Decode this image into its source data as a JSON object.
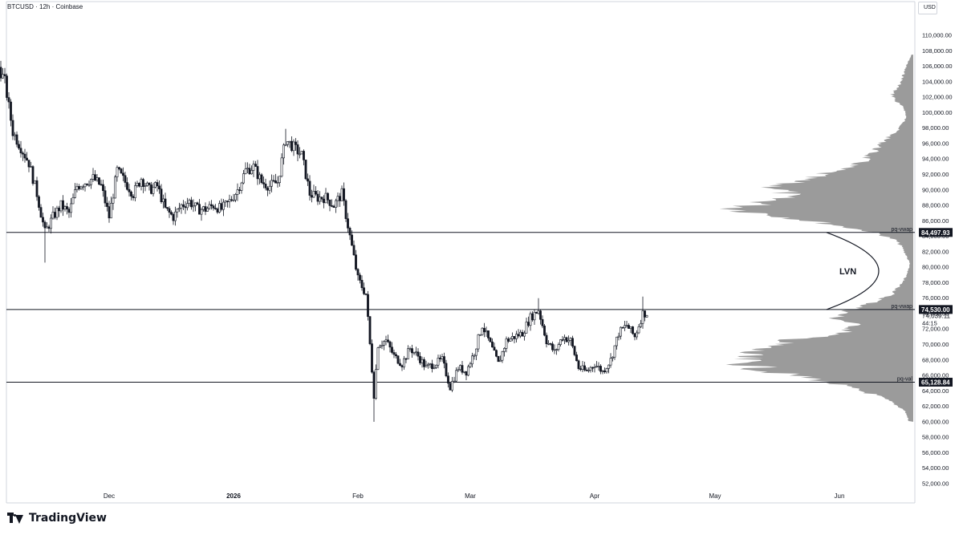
{
  "header": {
    "symbol_title": "BTCUSD · 12h · Coinbase",
    "currency": "USD"
  },
  "brand": {
    "name": "TradingView",
    "logo_icon": "tradingview-logo-icon"
  },
  "chart_data": {
    "type": "candlestick",
    "ylim": [
      51000,
      111000
    ],
    "y_ticks": [
      52000,
      54000,
      56000,
      58000,
      60000,
      62000,
      64000,
      66000,
      68000,
      70000,
      72000,
      74000,
      76000,
      78000,
      80000,
      82000,
      84000,
      86000,
      88000,
      90000,
      92000,
      94000,
      96000,
      98000,
      100000,
      102000,
      104000,
      106000,
      108000,
      110000
    ],
    "x_ticks": [
      {
        "label": "Dec",
        "date": "2025-12-01"
      },
      {
        "label": "2026",
        "date": "2026-01-01"
      },
      {
        "label": "Feb",
        "date": "2026-02-01"
      },
      {
        "label": "Mar",
        "date": "2026-03-01"
      },
      {
        "label": "Apr",
        "date": "2026-04-01"
      },
      {
        "label": "May",
        "date": "2026-05-01"
      },
      {
        "label": "Jun",
        "date": "2026-06-01"
      }
    ],
    "price_path": [
      [
        "2025-11-01",
        101500
      ],
      [
        "2025-11-03",
        106500
      ],
      [
        "2025-11-05",
        104000
      ],
      [
        "2025-11-07",
        97500
      ],
      [
        "2025-11-09",
        95500
      ],
      [
        "2025-11-11",
        93500
      ],
      [
        "2025-11-13",
        89500
      ],
      [
        "2025-11-15",
        84500
      ],
      [
        "2025-11-17",
        86500
      ],
      [
        "2025-11-19",
        88000
      ],
      [
        "2025-11-21",
        87000
      ],
      [
        "2025-11-23",
        90500
      ],
      [
        "2025-11-25",
        91000
      ],
      [
        "2025-11-27",
        91500
      ],
      [
        "2025-11-29",
        90500
      ],
      [
        "2025-12-01",
        86500
      ],
      [
        "2025-12-03",
        92500
      ],
      [
        "2025-12-05",
        91000
      ],
      [
        "2025-12-07",
        89500
      ],
      [
        "2025-12-09",
        91500
      ],
      [
        "2025-12-11",
        90000
      ],
      [
        "2025-12-13",
        90500
      ],
      [
        "2025-12-15",
        87500
      ],
      [
        "2025-12-17",
        86500
      ],
      [
        "2025-12-19",
        88000
      ],
      [
        "2025-12-21",
        88500
      ],
      [
        "2025-12-23",
        87500
      ],
      [
        "2025-12-25",
        87500
      ],
      [
        "2025-12-27",
        88000
      ],
      [
        "2025-12-29",
        87500
      ],
      [
        "2025-12-31",
        88500
      ],
      [
        "2026-01-02",
        90000
      ],
      [
        "2026-01-04",
        92500
      ],
      [
        "2026-01-06",
        93000
      ],
      [
        "2026-01-08",
        91000
      ],
      [
        "2026-01-10",
        90500
      ],
      [
        "2026-01-12",
        91000
      ],
      [
        "2026-01-14",
        96500
      ],
      [
        "2026-01-16",
        95500
      ],
      [
        "2026-01-18",
        94500
      ],
      [
        "2026-01-20",
        89500
      ],
      [
        "2026-01-22",
        89000
      ],
      [
        "2026-01-24",
        89000
      ],
      [
        "2026-01-26",
        88000
      ],
      [
        "2026-01-28",
        89500
      ],
      [
        "2026-01-30",
        84000
      ],
      [
        "2026-02-01",
        78500
      ],
      [
        "2026-02-03",
        76500
      ],
      [
        "2026-02-05",
        63500
      ],
      [
        "2026-02-06",
        70000
      ],
      [
        "2026-02-08",
        70500
      ],
      [
        "2026-02-10",
        68500
      ],
      [
        "2026-02-12",
        67500
      ],
      [
        "2026-02-14",
        69500
      ],
      [
        "2026-02-16",
        68500
      ],
      [
        "2026-02-18",
        67000
      ],
      [
        "2026-02-20",
        67500
      ],
      [
        "2026-02-22",
        68000
      ],
      [
        "2026-02-24",
        64500
      ],
      [
        "2026-02-26",
        67000
      ],
      [
        "2026-02-28",
        66500
      ],
      [
        "2026-03-02",
        69000
      ],
      [
        "2026-03-04",
        72500
      ],
      [
        "2026-03-06",
        70000
      ],
      [
        "2026-03-08",
        67500
      ],
      [
        "2026-03-10",
        70500
      ],
      [
        "2026-03-12",
        71000
      ],
      [
        "2026-03-14",
        71500
      ],
      [
        "2026-03-16",
        73500
      ],
      [
        "2026-03-18",
        74500
      ],
      [
        "2026-03-20",
        70500
      ],
      [
        "2026-03-22",
        69000
      ],
      [
        "2026-03-24",
        71000
      ],
      [
        "2026-03-26",
        70500
      ],
      [
        "2026-03-28",
        67000
      ],
      [
        "2026-03-30",
        66500
      ],
      [
        "2026-04-01",
        67500
      ],
      [
        "2026-04-03",
        66500
      ],
      [
        "2026-04-05",
        68000
      ],
      [
        "2026-04-07",
        71500
      ],
      [
        "2026-04-09",
        72500
      ],
      [
        "2026-04-11",
        71000
      ],
      [
        "2026-04-13",
        74039.11
      ]
    ],
    "extremes": [
      {
        "date": "2025-11-03",
        "high": 107500
      },
      {
        "date": "2025-11-15",
        "low": 80600
      },
      {
        "date": "2026-01-14",
        "high": 97900
      },
      {
        "date": "2026-02-05",
        "low": 60000
      },
      {
        "date": "2026-03-18",
        "high": 76000
      },
      {
        "date": "2026-04-13",
        "high": 76200
      }
    ],
    "volume_profile": {
      "range": [
        60000,
        107500
      ],
      "nodes": [
        {
          "price": 60500,
          "size": 0.03
        },
        {
          "price": 61500,
          "size": 0.05
        },
        {
          "price": 62500,
          "size": 0.12
        },
        {
          "price": 63500,
          "size": 0.22
        },
        {
          "price": 64500,
          "size": 0.38
        },
        {
          "price": 65500,
          "size": 0.55
        },
        {
          "price": 66500,
          "size": 0.82
        },
        {
          "price": 67500,
          "size": 0.95
        },
        {
          "price": 68500,
          "size": 1.0
        },
        {
          "price": 69500,
          "size": 0.88
        },
        {
          "price": 70500,
          "size": 0.72
        },
        {
          "price": 71500,
          "size": 0.4
        },
        {
          "price": 72500,
          "size": 0.32
        },
        {
          "price": 73500,
          "size": 0.45
        },
        {
          "price": 74500,
          "size": 0.35
        },
        {
          "price": 75500,
          "size": 0.22
        },
        {
          "price": 76500,
          "size": 0.12
        },
        {
          "price": 77500,
          "size": 0.08
        },
        {
          "price": 78500,
          "size": 0.05
        },
        {
          "price": 79500,
          "size": 0.03
        },
        {
          "price": 80500,
          "size": 0.02
        },
        {
          "price": 81500,
          "size": 0.04
        },
        {
          "price": 82500,
          "size": 0.06
        },
        {
          "price": 83500,
          "size": 0.1
        },
        {
          "price": 84500,
          "size": 0.22
        },
        {
          "price": 85500,
          "size": 0.45
        },
        {
          "price": 86500,
          "size": 0.72
        },
        {
          "price": 87500,
          "size": 1.0
        },
        {
          "price": 88500,
          "size": 0.82
        },
        {
          "price": 89500,
          "size": 0.72
        },
        {
          "price": 90500,
          "size": 0.78
        },
        {
          "price": 91500,
          "size": 0.62
        },
        {
          "price": 92500,
          "size": 0.45
        },
        {
          "price": 93500,
          "size": 0.3
        },
        {
          "price": 94500,
          "size": 0.25
        },
        {
          "price": 95500,
          "size": 0.2
        },
        {
          "price": 96500,
          "size": 0.16
        },
        {
          "price": 97500,
          "size": 0.1
        },
        {
          "price": 98500,
          "size": 0.06
        },
        {
          "price": 99500,
          "size": 0.04
        },
        {
          "price": 100500,
          "size": 0.05
        },
        {
          "price": 101500,
          "size": 0.1
        },
        {
          "price": 102500,
          "size": 0.12
        },
        {
          "price": 103500,
          "size": 0.08
        },
        {
          "price": 104500,
          "size": 0.06
        },
        {
          "price": 105500,
          "size": 0.05
        },
        {
          "price": 106500,
          "size": 0.03
        },
        {
          "price": 107500,
          "size": 0.01
        }
      ]
    },
    "levels": [
      {
        "name": "pq-vwap",
        "value": 84497.93,
        "label": "84,497.93"
      },
      {
        "name": "pq-vwap",
        "value": 74530.0,
        "label": "74,530.00"
      },
      {
        "name": "pq-val",
        "value": 65128.84,
        "label": "65,128.84"
      }
    ],
    "last_price": {
      "value": 74039.11,
      "label": "74,039.11",
      "countdown": "44:15"
    },
    "annotation": {
      "text": "LVN",
      "from": 74530.0,
      "to": 84497.93
    }
  },
  "colors": {
    "background": "#ffffff",
    "candle": "#131722",
    "profile": "#8a8a8a",
    "level_line": "#131722",
    "label_bg": "#131722",
    "label_text": "#ffffff"
  }
}
